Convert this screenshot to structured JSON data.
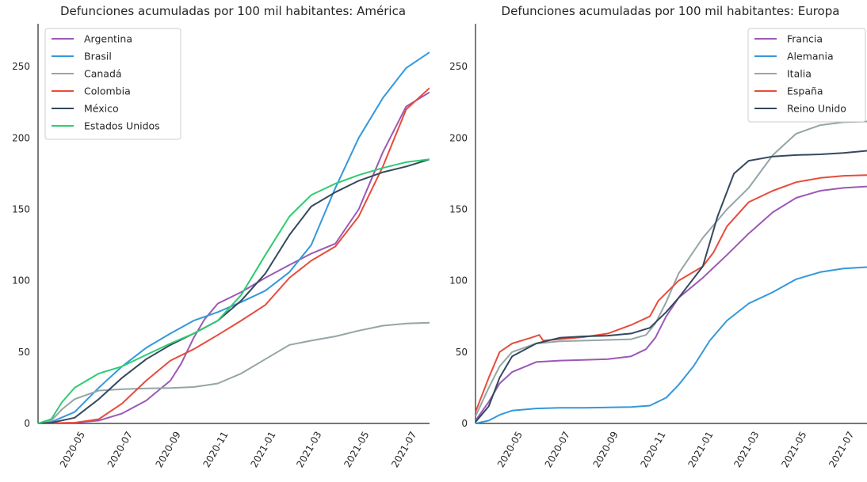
{
  "chart_data": [
    {
      "type": "line",
      "title": "Defunciones acumuladas por 100 mil habitantes: América",
      "xlabel": "",
      "ylabel": "",
      "xlim": [
        "2020-03-15",
        "2021-07-31"
      ],
      "ylim": [
        0,
        280
      ],
      "yticks": [
        0,
        50,
        100,
        150,
        200,
        250
      ],
      "xticks": [
        "2020-05",
        "2020-07",
        "2020-09",
        "2020-11",
        "2021-01",
        "2021-03",
        "2021-05",
        "2021-07"
      ],
      "legend_position": "top-left",
      "grid": false,
      "series": [
        {
          "name": "Argentina",
          "color": "#9b59b6",
          "points": [
            [
              "2020-03-15",
              0
            ],
            [
              "2020-05-01",
              0.5
            ],
            [
              "2020-06-01",
              2
            ],
            [
              "2020-07-01",
              7
            ],
            [
              "2020-08-01",
              16
            ],
            [
              "2020-09-01",
              30
            ],
            [
              "2020-09-15",
              42
            ],
            [
              "2020-10-01",
              60
            ],
            [
              "2020-10-15",
              73
            ],
            [
              "2020-11-01",
              84
            ],
            [
              "2020-12-01",
              92
            ],
            [
              "2021-01-01",
              102
            ],
            [
              "2021-02-01",
              111
            ],
            [
              "2021-03-01",
              119
            ],
            [
              "2021-04-01",
              126
            ],
            [
              "2021-05-01",
              150
            ],
            [
              "2021-06-01",
              190
            ],
            [
              "2021-07-01",
              222
            ],
            [
              "2021-07-31",
              232
            ]
          ]
        },
        {
          "name": "Brasil",
          "color": "#3498db",
          "points": [
            [
              "2020-03-15",
              0
            ],
            [
              "2020-04-01",
              1
            ],
            [
              "2020-05-01",
              8
            ],
            [
              "2020-06-01",
              25
            ],
            [
              "2020-07-01",
              40
            ],
            [
              "2020-08-01",
              53
            ],
            [
              "2020-09-01",
              63
            ],
            [
              "2020-10-01",
              72
            ],
            [
              "2020-11-01",
              78
            ],
            [
              "2020-12-01",
              85
            ],
            [
              "2021-01-01",
              93
            ],
            [
              "2021-02-01",
              106
            ],
            [
              "2021-03-01",
              125
            ],
            [
              "2021-04-01",
              165
            ],
            [
              "2021-05-01",
              200
            ],
            [
              "2021-06-01",
              228
            ],
            [
              "2021-07-01",
              249
            ],
            [
              "2021-07-31",
              260
            ]
          ]
        },
        {
          "name": "Canadá",
          "color": "#95a5a6",
          "points": [
            [
              "2020-03-15",
              0
            ],
            [
              "2020-04-01",
              2
            ],
            [
              "2020-04-15",
              10
            ],
            [
              "2020-05-01",
              17
            ],
            [
              "2020-06-01",
              23
            ],
            [
              "2020-07-01",
              24
            ],
            [
              "2020-08-01",
              24.5
            ],
            [
              "2020-09-01",
              24.8
            ],
            [
              "2020-10-01",
              25.5
            ],
            [
              "2020-11-01",
              28
            ],
            [
              "2020-12-01",
              35
            ],
            [
              "2021-01-01",
              45
            ],
            [
              "2021-02-01",
              55
            ],
            [
              "2021-03-01",
              58
            ],
            [
              "2021-04-01",
              61
            ],
            [
              "2021-05-01",
              65
            ],
            [
              "2021-06-01",
              68.5
            ],
            [
              "2021-07-01",
              70
            ],
            [
              "2021-07-31",
              70.5
            ]
          ]
        },
        {
          "name": "Colombia",
          "color": "#e74c3c",
          "points": [
            [
              "2020-03-15",
              0
            ],
            [
              "2020-05-01",
              0.5
            ],
            [
              "2020-06-01",
              3
            ],
            [
              "2020-07-01",
              14
            ],
            [
              "2020-08-01",
              30
            ],
            [
              "2020-09-01",
              44
            ],
            [
              "2020-10-01",
              52
            ],
            [
              "2020-11-01",
              62
            ],
            [
              "2020-12-01",
              72
            ],
            [
              "2021-01-01",
              83
            ],
            [
              "2021-02-01",
              102
            ],
            [
              "2021-03-01",
              114
            ],
            [
              "2021-04-01",
              124
            ],
            [
              "2021-05-01",
              145
            ],
            [
              "2021-06-01",
              180
            ],
            [
              "2021-07-01",
              220
            ],
            [
              "2021-07-31",
              235
            ]
          ]
        },
        {
          "name": "México",
          "color": "#34495e",
          "points": [
            [
              "2020-03-15",
              0
            ],
            [
              "2020-04-01",
              0.5
            ],
            [
              "2020-05-01",
              4
            ],
            [
              "2020-06-01",
              17
            ],
            [
              "2020-07-01",
              32
            ],
            [
              "2020-08-01",
              45
            ],
            [
              "2020-09-01",
              55
            ],
            [
              "2020-10-01",
              63
            ],
            [
              "2020-11-01",
              72
            ],
            [
              "2020-12-01",
              86
            ],
            [
              "2021-01-01",
              105
            ],
            [
              "2021-02-01",
              132
            ],
            [
              "2021-03-01",
              152
            ],
            [
              "2021-04-01",
              162
            ],
            [
              "2021-05-01",
              170
            ],
            [
              "2021-06-01",
              176
            ],
            [
              "2021-07-01",
              180
            ],
            [
              "2021-07-31",
              185
            ]
          ]
        },
        {
          "name": "Estados Unidos",
          "color": "#2ecc71",
          "points": [
            [
              "2020-03-15",
              0
            ],
            [
              "2020-04-01",
              3
            ],
            [
              "2020-04-15",
              15
            ],
            [
              "2020-05-01",
              25
            ],
            [
              "2020-06-01",
              35
            ],
            [
              "2020-07-01",
              40
            ],
            [
              "2020-08-01",
              48
            ],
            [
              "2020-09-01",
              56
            ],
            [
              "2020-10-01",
              63
            ],
            [
              "2020-11-01",
              72
            ],
            [
              "2020-12-01",
              90
            ],
            [
              "2021-01-01",
              118
            ],
            [
              "2021-02-01",
              145
            ],
            [
              "2021-03-01",
              160
            ],
            [
              "2021-04-01",
              168
            ],
            [
              "2021-05-01",
              174
            ],
            [
              "2021-06-01",
              179
            ],
            [
              "2021-07-01",
              183
            ],
            [
              "2021-07-31",
              185
            ]
          ]
        }
      ]
    },
    {
      "type": "line",
      "title": "Defunciones acumuladas por 100 mil habitantes: Europa",
      "xlabel": "",
      "ylabel": "",
      "xlim": [
        "2020-03-15",
        "2021-07-31"
      ],
      "ylim": [
        0,
        280
      ],
      "yticks": [
        0,
        50,
        100,
        150,
        200,
        250
      ],
      "xticks": [
        "2020-05",
        "2020-07",
        "2020-09",
        "2020-11",
        "2021-01",
        "2021-03",
        "2021-05",
        "2021-07"
      ],
      "legend_position": "top-right",
      "grid": false,
      "series": [
        {
          "name": "Francia",
          "color": "#9b59b6",
          "points": [
            [
              "2020-03-15",
              2
            ],
            [
              "2020-04-01",
              15
            ],
            [
              "2020-04-15",
              28
            ],
            [
              "2020-05-01",
              36
            ],
            [
              "2020-06-01",
              43
            ],
            [
              "2020-07-01",
              44
            ],
            [
              "2020-08-01",
              44.5
            ],
            [
              "2020-09-01",
              45
            ],
            [
              "2020-10-01",
              47
            ],
            [
              "2020-10-20",
              52
            ],
            [
              "2020-11-01",
              60
            ],
            [
              "2020-11-15",
              75
            ],
            [
              "2020-12-01",
              88
            ],
            [
              "2021-01-01",
              102
            ],
            [
              "2021-02-01",
              118
            ],
            [
              "2021-03-01",
              133
            ],
            [
              "2021-04-01",
              148
            ],
            [
              "2021-05-01",
              158
            ],
            [
              "2021-06-01",
              163
            ],
            [
              "2021-07-01",
              165
            ],
            [
              "2021-07-31",
              166
            ]
          ]
        },
        {
          "name": "Alemania",
          "color": "#3498db",
          "points": [
            [
              "2020-03-15",
              0
            ],
            [
              "2020-04-01",
              2
            ],
            [
              "2020-04-15",
              6
            ],
            [
              "2020-05-01",
              9
            ],
            [
              "2020-06-01",
              10.5
            ],
            [
              "2020-07-01",
              11
            ],
            [
              "2020-08-01",
              11
            ],
            [
              "2020-09-01",
              11.2
            ],
            [
              "2020-10-01",
              11.5
            ],
            [
              "2020-10-25",
              12.5
            ],
            [
              "2020-11-15",
              18
            ],
            [
              "2020-12-01",
              27
            ],
            [
              "2020-12-20",
              40
            ],
            [
              "2021-01-10",
              58
            ],
            [
              "2021-02-01",
              72
            ],
            [
              "2021-03-01",
              84
            ],
            [
              "2021-04-01",
              92
            ],
            [
              "2021-05-01",
              101
            ],
            [
              "2021-06-01",
              106
            ],
            [
              "2021-07-01",
              108.5
            ],
            [
              "2021-07-31",
              109.5
            ]
          ]
        },
        {
          "name": "Italia",
          "color": "#95a5a6",
          "points": [
            [
              "2020-03-15",
              5
            ],
            [
              "2020-04-01",
              25
            ],
            [
              "2020-04-15",
              40
            ],
            [
              "2020-05-01",
              50
            ],
            [
              "2020-06-01",
              56
            ],
            [
              "2020-07-01",
              57.5
            ],
            [
              "2020-08-01",
              58
            ],
            [
              "2020-09-01",
              58.5
            ],
            [
              "2020-10-01",
              59
            ],
            [
              "2020-10-20",
              62
            ],
            [
              "2020-11-01",
              70
            ],
            [
              "2020-11-15",
              85
            ],
            [
              "2020-12-01",
              105
            ],
            [
              "2021-01-01",
              130
            ],
            [
              "2021-02-01",
              150
            ],
            [
              "2021-03-01",
              165
            ],
            [
              "2021-04-01",
              188
            ],
            [
              "2021-05-01",
              203
            ],
            [
              "2021-06-01",
              209
            ],
            [
              "2021-07-01",
              211
            ],
            [
              "2021-07-31",
              211.5
            ]
          ]
        },
        {
          "name": "España",
          "color": "#e74c3c",
          "points": [
            [
              "2020-03-15",
              8
            ],
            [
              "2020-04-01",
              32
            ],
            [
              "2020-04-15",
              50
            ],
            [
              "2020-05-01",
              56
            ],
            [
              "2020-05-25",
              60
            ],
            [
              "2020-06-05",
              62
            ],
            [
              "2020-06-10",
              58
            ],
            [
              "2020-07-01",
              59
            ],
            [
              "2020-08-01",
              60.5
            ],
            [
              "2020-09-01",
              63
            ],
            [
              "2020-10-01",
              69
            ],
            [
              "2020-10-25",
              75
            ],
            [
              "2020-11-05",
              86
            ],
            [
              "2020-12-01",
              100
            ],
            [
              "2021-01-01",
              110
            ],
            [
              "2021-01-15",
              120
            ],
            [
              "2021-02-01",
              138
            ],
            [
              "2021-03-01",
              155
            ],
            [
              "2021-04-01",
              163
            ],
            [
              "2021-05-01",
              169
            ],
            [
              "2021-06-01",
              172
            ],
            [
              "2021-07-01",
              173.5
            ],
            [
              "2021-07-31",
              174
            ]
          ]
        },
        {
          "name": "Reino Unido",
          "color": "#34495e",
          "points": [
            [
              "2020-03-15",
              1
            ],
            [
              "2020-04-01",
              12
            ],
            [
              "2020-04-15",
              32
            ],
            [
              "2020-05-01",
              47
            ],
            [
              "2020-06-01",
              56
            ],
            [
              "2020-07-01",
              60
            ],
            [
              "2020-08-01",
              61
            ],
            [
              "2020-09-01",
              61.5
            ],
            [
              "2020-10-01",
              63
            ],
            [
              "2020-10-25",
              67
            ],
            [
              "2020-11-15",
              78
            ],
            [
              "2020-12-01",
              88
            ],
            [
              "2021-01-01",
              110
            ],
            [
              "2021-01-20",
              145
            ],
            [
              "2021-02-10",
              175
            ],
            [
              "2021-03-01",
              184
            ],
            [
              "2021-04-01",
              187
            ],
            [
              "2021-05-01",
              188
            ],
            [
              "2021-06-01",
              188.5
            ],
            [
              "2021-07-01",
              189.5
            ],
            [
              "2021-07-31",
              191
            ]
          ]
        }
      ]
    }
  ]
}
